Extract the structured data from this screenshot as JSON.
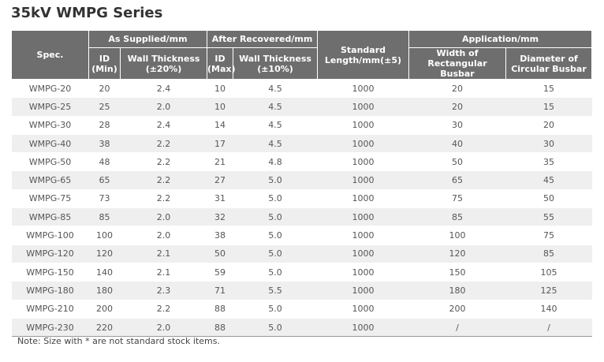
{
  "title": "35kV WMPG Series",
  "table": {
    "header_top": [
      "Spec.",
      "As Supplied/mm",
      "After Recovered/mm",
      "Standard\nLength/mm(±5)",
      "Application/mm"
    ],
    "header_sub": [
      "ID\n(Min)",
      "Wall Thickness\n(±20%)",
      "ID\n(Max)",
      "Wall Thickness\n(±10%)",
      "Width of\nRectangular Busbar",
      "Diameter of\nCircular Busbar"
    ],
    "rows": [
      [
        "WMPG-20",
        "20",
        "2.4",
        "10",
        "4.5",
        "1000",
        "20",
        "15"
      ],
      [
        "WMPG-25",
        "25",
        "2.0",
        "10",
        "4.5",
        "1000",
        "20",
        "15"
      ],
      [
        "WMPG-30",
        "28",
        "2.4",
        "14",
        "4.5",
        "1000",
        "30",
        "20"
      ],
      [
        "WMPG-40",
        "38",
        "2.2",
        "17",
        "4.5",
        "1000",
        "40",
        "30"
      ],
      [
        "WMPG-50",
        "48",
        "2.2",
        "21",
        "4.8",
        "1000",
        "50",
        "35"
      ],
      [
        "WMPG-65",
        "65",
        "2.2",
        "27",
        "5.0",
        "1000",
        "65",
        "45"
      ],
      [
        "WMPG-75",
        "73",
        "2.2",
        "31",
        "5.0",
        "1000",
        "75",
        "50"
      ],
      [
        "WMPG-85",
        "85",
        "2.0",
        "32",
        "5.0",
        "1000",
        "85",
        "55"
      ],
      [
        "WMPG-100",
        "100",
        "2.0",
        "38",
        "5.0",
        "1000",
        "100",
        "75"
      ],
      [
        "WMPG-120",
        "120",
        "2.1",
        "50",
        "5.0",
        "1000",
        "120",
        "85"
      ],
      [
        "WMPG-150",
        "140",
        "2.1",
        "59",
        "5.0",
        "1000",
        "150",
        "105"
      ],
      [
        "WMPG-180",
        "180",
        "2.3",
        "71",
        "5.5",
        "1000",
        "180",
        "125"
      ],
      [
        "WMPG-210",
        "200",
        "2.2",
        "88",
        "5.0",
        "1000",
        "200",
        "140"
      ],
      [
        "WMPG-230",
        "220",
        "2.0",
        "88",
        "5.0",
        "1000",
        "/",
        "/"
      ]
    ]
  },
  "note": "Note: Size with * are not standard stock items."
}
